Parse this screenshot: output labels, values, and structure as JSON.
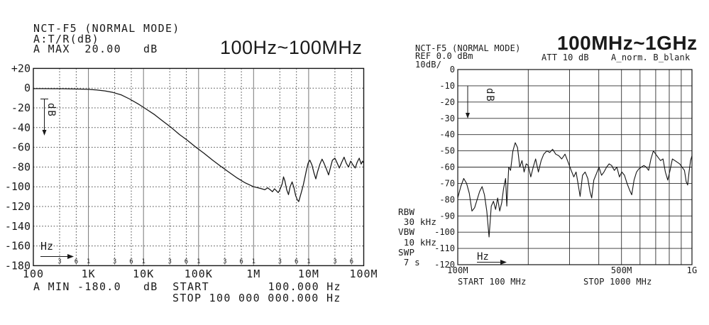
{
  "left_panel": {
    "header_lines": [
      "NCT-F5 (NORMAL MODE)",
      "A:T/R(dB)",
      "A MAX  20.00   dB"
    ],
    "title": "100Hz~100MHz",
    "footer_line1": "A MIN -180.0   dB  START        100.000 Hz",
    "footer_line2": "STOP 100 000 000.000 Hz",
    "x_unit_label": "Hz",
    "y_unit_label": "dB"
  },
  "right_panel": {
    "header_lines": [
      "NCT-F5 (NORMAL MODE)",
      "REF 0.0 dBm",
      "10dB/"
    ],
    "title": "100MHz~1GHz",
    "att_label": "ATT 10 dB",
    "trace_label": "A_norm. B_blank",
    "bw_lines": [
      "RBW",
      " 30 kHz",
      "VBW",
      " 10 kHz",
      "SWP",
      " 7 s"
    ],
    "start_label": "START 100 MHz",
    "stop_label": "STOP 1000 MHz",
    "x_unit_label": "Hz",
    "y_unit_label": "dB"
  },
  "colors": {
    "ink": "#1a1a1a",
    "background": "#ffffff",
    "grid_dotted": "#444444",
    "grid_major": "#777777"
  },
  "chart_data": [
    {
      "type": "line",
      "title": "100Hz~100MHz",
      "xlabel": "Hz",
      "ylabel": "dB",
      "xscale": "log",
      "xlim": [
        100,
        100000000
      ],
      "ylim": [
        -180,
        20
      ],
      "grid": "horizontal-dotted, vertical decades solid, minor 3/6 dotted",
      "legend": "none",
      "x_tick_values": [
        100,
        1000,
        10000,
        100000,
        1000000,
        10000000,
        100000000
      ],
      "x_tick_labels": [
        "100",
        "1K",
        "10K",
        "100K",
        "1M",
        "10M",
        "100M"
      ],
      "x_grid_values": [
        1000,
        10000,
        100000,
        1000000,
        10000000
      ],
      "x_minor_grid_values": [
        300,
        600,
        3000,
        6000,
        30000,
        60000,
        300000,
        600000,
        3000000,
        6000000,
        30000000,
        60000000
      ],
      "x_minor_labels": [
        [
          300,
          "3"
        ],
        [
          600,
          "6"
        ],
        [
          1000,
          "1"
        ],
        [
          3000,
          "3"
        ],
        [
          6000,
          "6"
        ],
        [
          10000,
          "1"
        ],
        [
          30000,
          "3"
        ],
        [
          60000,
          "6"
        ],
        [
          100000,
          "1"
        ],
        [
          300000,
          "3"
        ],
        [
          600000,
          "6"
        ],
        [
          1000000,
          "1"
        ],
        [
          3000000,
          "3"
        ],
        [
          6000000,
          "6"
        ],
        [
          10000000,
          "1"
        ],
        [
          30000000,
          "3"
        ],
        [
          60000000,
          "6"
        ]
      ],
      "y_tick_values": [
        20,
        0,
        -20,
        -40,
        -60,
        -80,
        -100,
        -120,
        -140,
        -160,
        -180
      ],
      "y_tick_labels": [
        "+20",
        "0",
        "-20",
        "-40",
        "-60",
        "-80",
        "-100",
        "-120",
        "-140",
        "-160",
        "-180"
      ],
      "series": [
        {
          "name": "A:T/R(dB)",
          "points": [
            [
              100,
              -0.5
            ],
            [
              150,
              -0.5
            ],
            [
              220,
              -0.6
            ],
            [
              330,
              -0.6
            ],
            [
              470,
              -0.7
            ],
            [
              680,
              -0.9
            ],
            [
              1000,
              -1.2
            ],
            [
              1400,
              -1.8
            ],
            [
              2000,
              -2.8
            ],
            [
              2800,
              -4.4
            ],
            [
              4000,
              -7
            ],
            [
              5600,
              -11
            ],
            [
              8000,
              -16
            ],
            [
              11000,
              -21
            ],
            [
              16000,
              -27
            ],
            [
              22000,
              -33
            ],
            [
              32000,
              -40
            ],
            [
              45000,
              -47
            ],
            [
              63000,
              -53
            ],
            [
              90000,
              -60
            ],
            [
              125000,
              -66
            ],
            [
              180000,
              -73
            ],
            [
              250000,
              -79
            ],
            [
              350000,
              -85
            ],
            [
              500000,
              -91
            ],
            [
              700000,
              -96
            ],
            [
              1000000,
              -100
            ],
            [
              1200000,
              -101
            ],
            [
              1400000,
              -102
            ],
            [
              1600000,
              -103
            ],
            [
              1800000,
              -101
            ],
            [
              2000000,
              -103
            ],
            [
              2200000,
              -105
            ],
            [
              2400000,
              -102
            ],
            [
              2600000,
              -104
            ],
            [
              2800000,
              -106
            ],
            [
              3000000,
              -103
            ],
            [
              3300000,
              -97
            ],
            [
              3500000,
              -90
            ],
            [
              3700000,
              -94
            ],
            [
              4000000,
              -103
            ],
            [
              4300000,
              -108
            ],
            [
              4600000,
              -100
            ],
            [
              5000000,
              -95
            ],
            [
              5400000,
              -101
            ],
            [
              5800000,
              -109
            ],
            [
              6200000,
              -113
            ],
            [
              6600000,
              -115
            ],
            [
              7000000,
              -110
            ],
            [
              7500000,
              -104
            ],
            [
              8000000,
              -98
            ],
            [
              8600000,
              -90
            ],
            [
              9200000,
              -82
            ],
            [
              9800000,
              -76
            ],
            [
              10500000,
              -73
            ],
            [
              11500000,
              -78
            ],
            [
              12500000,
              -86
            ],
            [
              13500000,
              -92
            ],
            [
              14500000,
              -85
            ],
            [
              16000000,
              -77
            ],
            [
              17500000,
              -72
            ],
            [
              19000000,
              -76
            ],
            [
              21000000,
              -82
            ],
            [
              23000000,
              -88
            ],
            [
              25000000,
              -80
            ],
            [
              27000000,
              -73
            ],
            [
              30000000,
              -71
            ],
            [
              33000000,
              -76
            ],
            [
              36000000,
              -81
            ],
            [
              40000000,
              -75
            ],
            [
              44000000,
              -70
            ],
            [
              48000000,
              -76
            ],
            [
              53000000,
              -80
            ],
            [
              58000000,
              -74
            ],
            [
              64000000,
              -78
            ],
            [
              70000000,
              -81
            ],
            [
              76000000,
              -75
            ],
            [
              83000000,
              -71
            ],
            [
              90000000,
              -77
            ],
            [
              95000000,
              -74
            ],
            [
              100000000,
              -76
            ]
          ]
        }
      ]
    },
    {
      "type": "line",
      "title": "100MHz~1GHz",
      "xlabel": "Hz",
      "ylabel": "dB (REF 0.0 dBm, 10dB/div)",
      "xscale": "log",
      "xlim": [
        100000000,
        1000000000
      ],
      "ylim": [
        -120,
        0
      ],
      "grid": "all solid",
      "legend": "none",
      "x_tick_values": [
        100000000,
        500000000,
        1000000000
      ],
      "x_tick_labels": [
        "100M",
        "500M",
        "1G"
      ],
      "x_grid_values": [
        200000000,
        300000000,
        400000000,
        500000000,
        600000000,
        700000000,
        800000000,
        900000000
      ],
      "y_tick_values": [
        0,
        -10,
        -20,
        -30,
        -40,
        -50,
        -60,
        -70,
        -80,
        -90,
        -100,
        -110,
        -120
      ],
      "y_tick_labels": [
        "0",
        "-10",
        "-20",
        "-30",
        "-40",
        "-50",
        "-60",
        "-70",
        "-80",
        "-90",
        "-100",
        "-110",
        "-120"
      ],
      "series": [
        {
          "name": "A_norm",
          "points": [
            [
              100000000,
              -79
            ],
            [
              103000000,
              -72
            ],
            [
              106000000,
              -67
            ],
            [
              109000000,
              -70
            ],
            [
              112000000,
              -76
            ],
            [
              115000000,
              -87
            ],
            [
              118000000,
              -85
            ],
            [
              121000000,
              -80
            ],
            [
              124000000,
              -75
            ],
            [
              127000000,
              -72
            ],
            [
              130000000,
              -77
            ],
            [
              133000000,
              -87
            ],
            [
              136000000,
              -103
            ],
            [
              139000000,
              -84
            ],
            [
              142000000,
              -81
            ],
            [
              145000000,
              -86
            ],
            [
              148000000,
              -79
            ],
            [
              151000000,
              -87
            ],
            [
              154000000,
              -82
            ],
            [
              157000000,
              -73
            ],
            [
              160000000,
              -67
            ],
            [
              162000000,
              -84
            ],
            [
              165000000,
              -60
            ],
            [
              168000000,
              -62
            ],
            [
              172000000,
              -50
            ],
            [
              176000000,
              -45
            ],
            [
              180000000,
              -48
            ],
            [
              184000000,
              -60
            ],
            [
              188000000,
              -56
            ],
            [
              192000000,
              -63
            ],
            [
              196000000,
              -58
            ],
            [
              200000000,
              -59
            ],
            [
              205000000,
              -66
            ],
            [
              210000000,
              -60
            ],
            [
              215000000,
              -55
            ],
            [
              221000000,
              -63
            ],
            [
              227000000,
              -56
            ],
            [
              233000000,
              -52
            ],
            [
              240000000,
              -50
            ],
            [
              247000000,
              -51
            ],
            [
              254000000,
              -49
            ],
            [
              262000000,
              -52
            ],
            [
              270000000,
              -53
            ],
            [
              278000000,
              -55
            ],
            [
              287000000,
              -52
            ],
            [
              296000000,
              -57
            ],
            [
              305000000,
              -62
            ],
            [
              313000000,
              -66
            ],
            [
              320000000,
              -63
            ],
            [
              327000000,
              -71
            ],
            [
              333000000,
              -78
            ],
            [
              341000000,
              -65
            ],
            [
              350000000,
              -63
            ],
            [
              359000000,
              -67
            ],
            [
              367000000,
              -75
            ],
            [
              373000000,
              -79
            ],
            [
              381000000,
              -68
            ],
            [
              391000000,
              -64
            ],
            [
              401000000,
              -60
            ],
            [
              411000000,
              -65
            ],
            [
              421000000,
              -63
            ],
            [
              432000000,
              -60
            ],
            [
              443000000,
              -58
            ],
            [
              454000000,
              -59
            ],
            [
              466000000,
              -62
            ],
            [
              478000000,
              -60
            ],
            [
              490000000,
              -66
            ],
            [
              502000000,
              -63
            ],
            [
              515000000,
              -65
            ],
            [
              528000000,
              -70
            ],
            [
              541000000,
              -74
            ],
            [
              553000000,
              -77
            ],
            [
              566000000,
              -68
            ],
            [
              580000000,
              -63
            ],
            [
              594000000,
              -61
            ],
            [
              608000000,
              -60
            ],
            [
              623000000,
              -59
            ],
            [
              638000000,
              -60
            ],
            [
              653000000,
              -62
            ],
            [
              668000000,
              -55
            ],
            [
              684000000,
              -50
            ],
            [
              700000000,
              -52
            ],
            [
              717000000,
              -54
            ],
            [
              734000000,
              -56
            ],
            [
              752000000,
              -55
            ],
            [
              770000000,
              -63
            ],
            [
              788000000,
              -68
            ],
            [
              806000000,
              -62
            ],
            [
              825000000,
              -55
            ],
            [
              845000000,
              -56
            ],
            [
              865000000,
              -57
            ],
            [
              886000000,
              -58
            ],
            [
              907000000,
              -60
            ],
            [
              929000000,
              -62
            ],
            [
              945000000,
              -69
            ],
            [
              958000000,
              -71
            ],
            [
              972000000,
              -63
            ],
            [
              986000000,
              -56
            ],
            [
              1000000000,
              -53
            ]
          ]
        }
      ]
    }
  ]
}
